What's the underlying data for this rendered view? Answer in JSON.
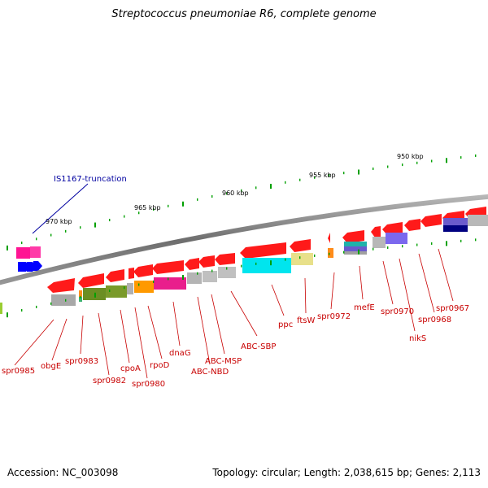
{
  "title": "Streptococcus pneumoniae R6, complete genome",
  "footer": {
    "accession": "Accession: NC_003098",
    "summary": "Topology: circular; Length: 2,038,615 bp; Genes: 2,113"
  },
  "scale": {
    "unit": "kbp",
    "labels": [
      "970 kbp",
      "965 kbp",
      "960 kbp",
      "955 kbp",
      "950 kbp"
    ]
  },
  "features": {
    "mobile_elements": [
      "IS1167-truncation"
    ],
    "genes": [
      "spr0985",
      "obgE",
      "spr0983",
      "spr0982",
      "cpoA",
      "spr0980",
      "rpoD",
      "dnaG",
      "ABC-NBD",
      "ABC-MSP",
      "ABC-SBP",
      "ppc",
      "ftsW",
      "spr0972",
      "mefE",
      "spr0970",
      "nikS",
      "spr0968",
      "spr0967"
    ]
  },
  "colors": {
    "gene_arrow": "#ff0000",
    "mobile_label": "#0000a0",
    "gene_label": "#c80000",
    "backbone": "#808080",
    "tick": "#00a000"
  }
}
